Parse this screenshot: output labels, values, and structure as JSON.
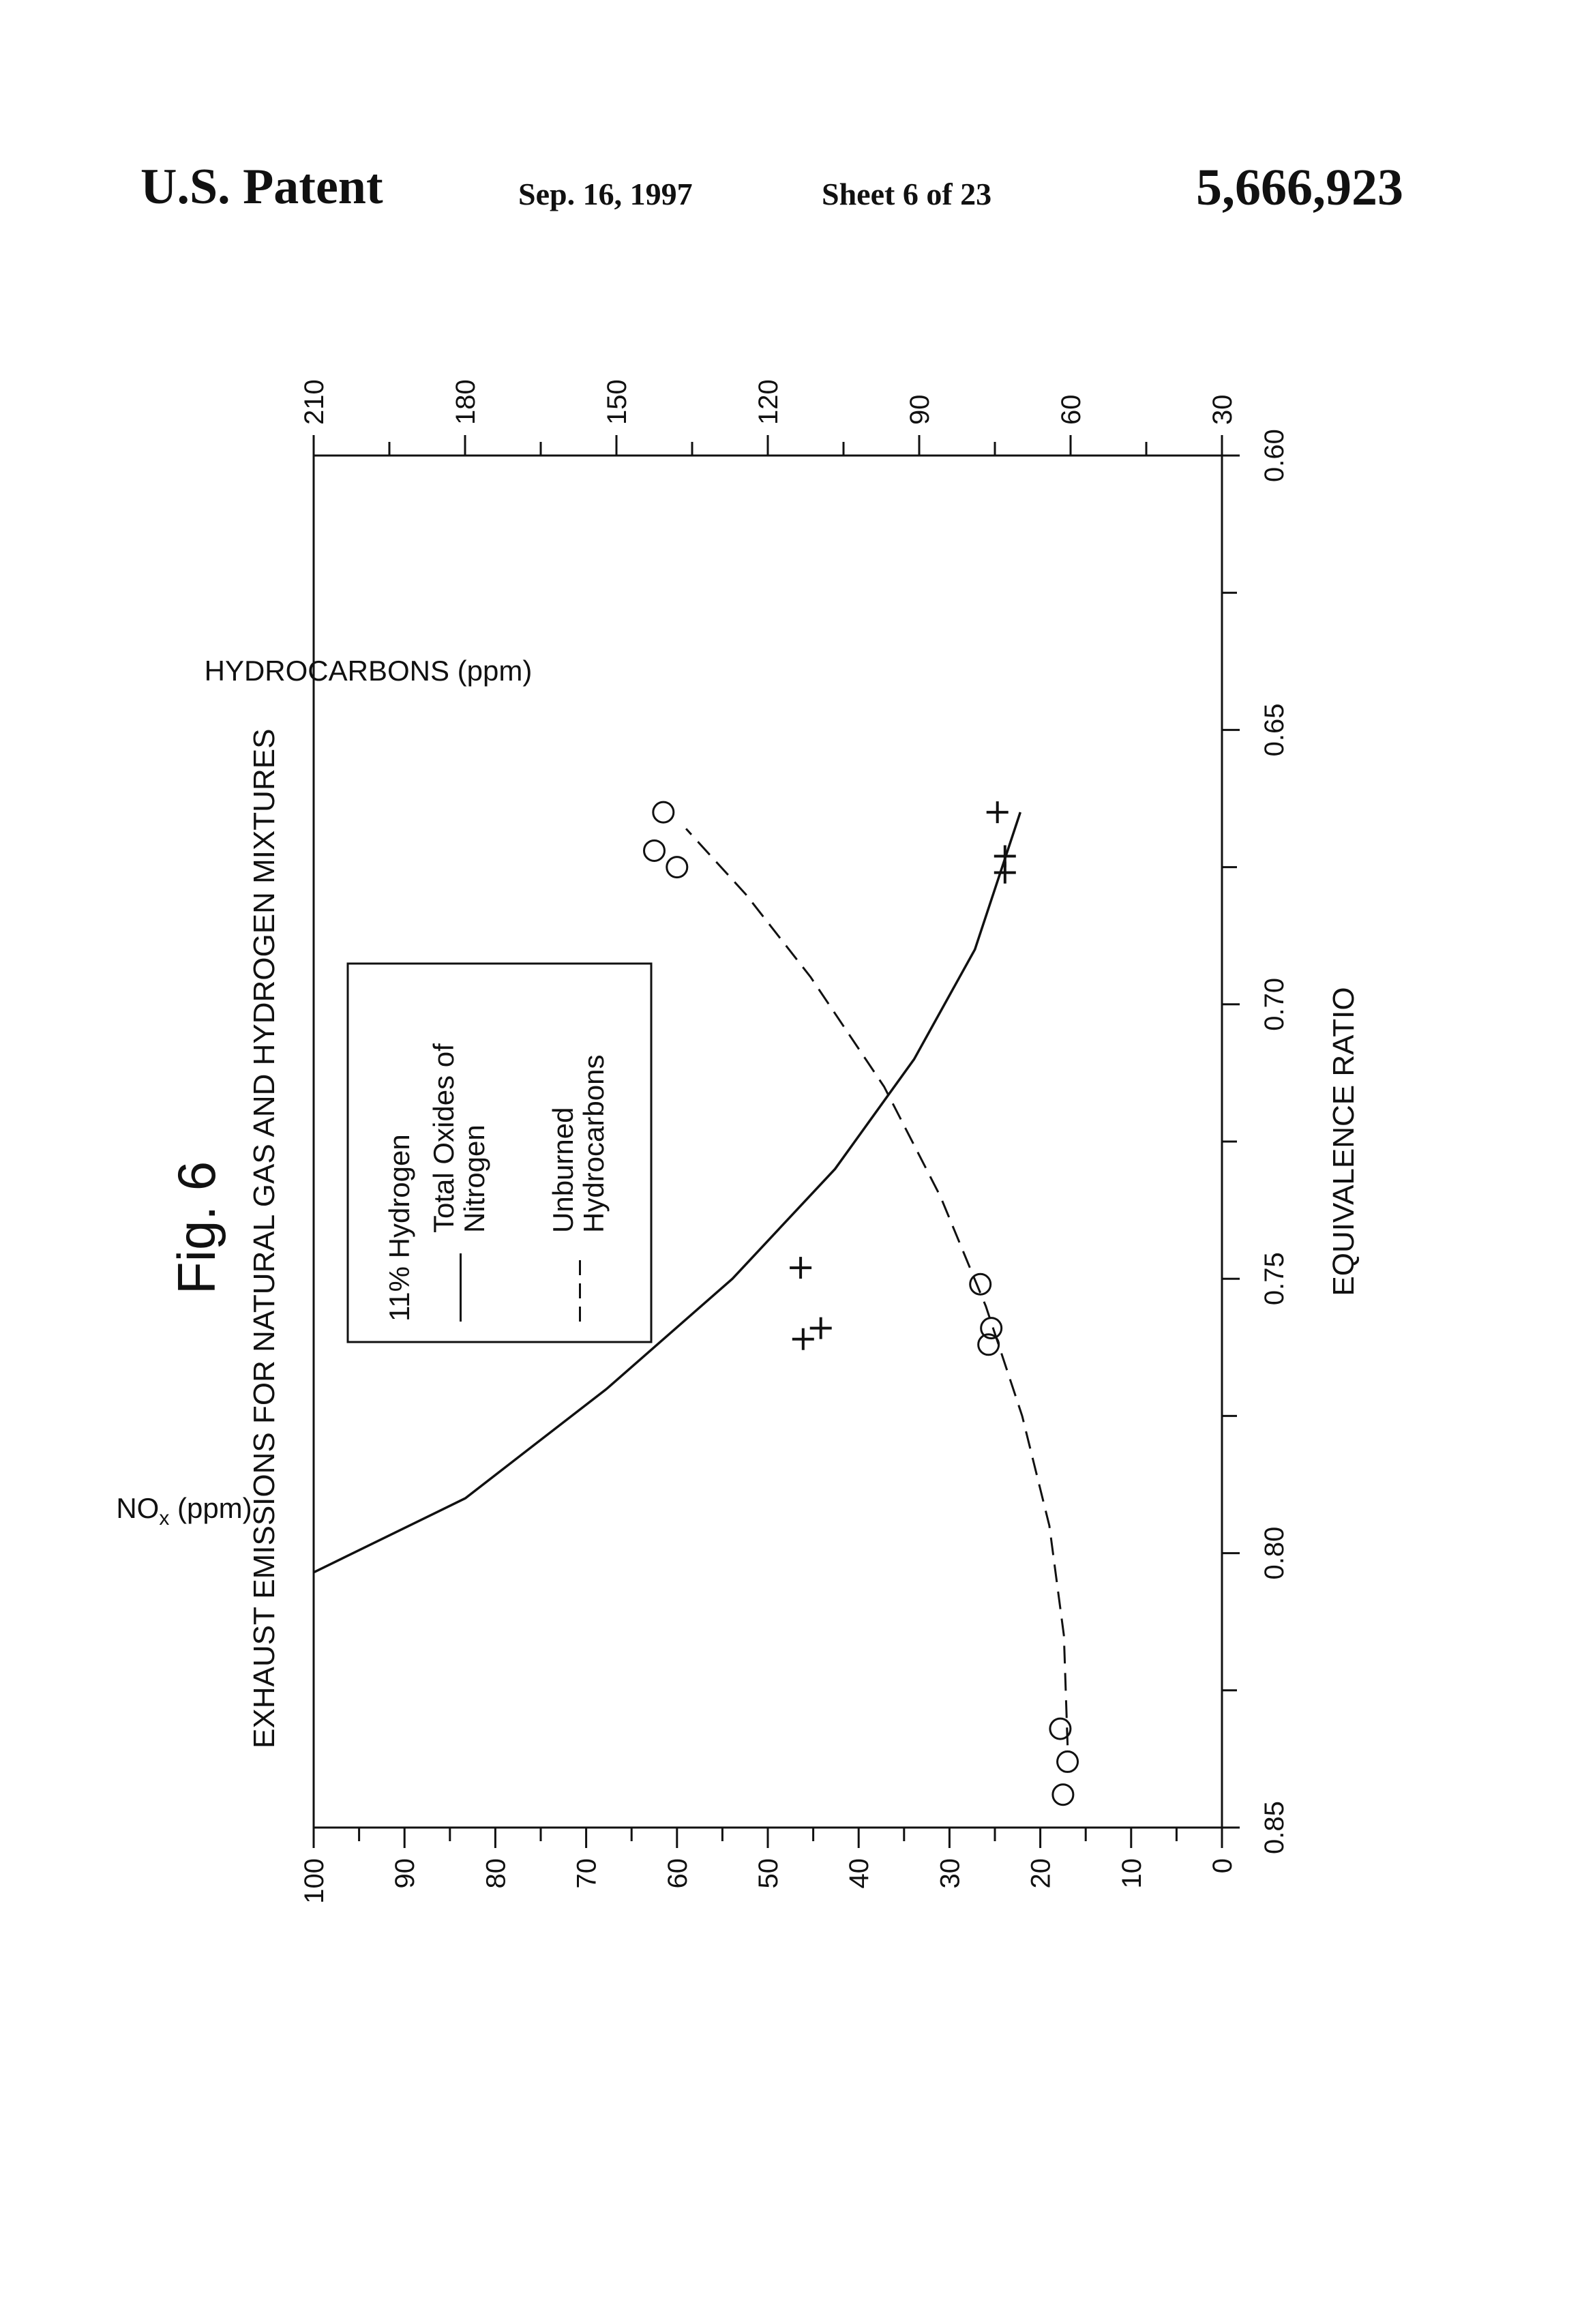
{
  "header": {
    "patent_label": "U.S. Patent",
    "date": "Sep. 16, 1997",
    "sheet": "Sheet 6 of 23",
    "patent_number": "5,666,923"
  },
  "chart_data": {
    "type": "line",
    "figure_label": "Fig. 6",
    "title": "EXHAUST EMISSIONS FOR NATURAL GAS AND HYDROGEN MIXTURES",
    "xlabel": "EQUIVALENCE RATIO",
    "ylabel_left": "NOx (ppm)",
    "ylabel_right": "HYDROCARBONS (ppm)",
    "xlim": [
      0.85,
      0.6
    ],
    "x_ticks": [
      "0.85",
      "0.80",
      "0.75",
      "0.70",
      "0.65",
      "0.60"
    ],
    "x_tick_values": [
      0.85,
      0.8,
      0.75,
      0.7,
      0.65,
      0.6
    ],
    "ylim_left": [
      0,
      100
    ],
    "y_left_ticks": [
      "0",
      "10",
      "20",
      "30",
      "40",
      "50",
      "60",
      "70",
      "80",
      "90",
      "100"
    ],
    "y_left_tick_values": [
      0,
      10,
      20,
      30,
      40,
      50,
      60,
      70,
      80,
      90,
      100
    ],
    "ylim_right": [
      30,
      210
    ],
    "y_right_ticks": [
      "30",
      "60",
      "90",
      "120",
      "150",
      "180",
      "210"
    ],
    "y_right_tick_values": [
      30,
      60,
      90,
      120,
      150,
      180,
      210
    ],
    "legend": {
      "title": "11% Hydrogen",
      "entries": [
        {
          "label_lines": [
            "Total Oxides of",
            "Nitrogen"
          ],
          "style": "solid"
        },
        {
          "label_lines": [
            "Unburned",
            "Hydrocarbons"
          ],
          "style": "dashed"
        }
      ]
    },
    "series": [
      {
        "marker": "circle",
        "axis": "left",
        "points": [
          {
            "x": 0.844,
            "y": 17.5
          },
          {
            "x": 0.838,
            "y": 17.0
          },
          {
            "x": 0.832,
            "y": 17.8
          },
          {
            "x": 0.762,
            "y": 25.7
          },
          {
            "x": 0.759,
            "y": 25.4
          },
          {
            "x": 0.751,
            "y": 26.6
          },
          {
            "x": 0.675,
            "y": 60.0
          },
          {
            "x": 0.672,
            "y": 62.5
          },
          {
            "x": 0.665,
            "y": 61.5
          }
        ]
      },
      {
        "marker": "plus",
        "axis": "right",
        "points": [
          {
            "x": 0.761,
            "y": 113.0
          },
          {
            "x": 0.759,
            "y": 109.5
          },
          {
            "x": 0.748,
            "y": 113.5
          },
          {
            "x": 0.676,
            "y": 73.0
          },
          {
            "x": 0.673,
            "y": 73.0
          },
          {
            "x": 0.665,
            "y": 74.5
          }
        ]
      },
      {
        "style": "solid",
        "axis": "left",
        "curve": [
          {
            "x": 0.8035,
            "y": 100.0
          },
          {
            "x": 0.79,
            "y": 83.3
          },
          {
            "x": 0.77,
            "y": 67.7
          },
          {
            "x": 0.75,
            "y": 53.9
          },
          {
            "x": 0.73,
            "y": 42.6
          },
          {
            "x": 0.71,
            "y": 33.9
          },
          {
            "x": 0.69,
            "y": 27.2
          },
          {
            "x": 0.665,
            "y": 22.2
          }
        ]
      },
      {
        "style": "dashed",
        "axis": "left",
        "curve": [
          {
            "x": 0.835,
            "y": 17.0
          },
          {
            "x": 0.815,
            "y": 17.4
          },
          {
            "x": 0.795,
            "y": 19.0
          },
          {
            "x": 0.775,
            "y": 22.0
          },
          {
            "x": 0.755,
            "y": 26.0
          },
          {
            "x": 0.735,
            "y": 31.0
          },
          {
            "x": 0.715,
            "y": 37.2
          },
          {
            "x": 0.695,
            "y": 45.3
          },
          {
            "x": 0.68,
            "y": 52.4
          },
          {
            "x": 0.668,
            "y": 59.0
          }
        ]
      }
    ]
  }
}
